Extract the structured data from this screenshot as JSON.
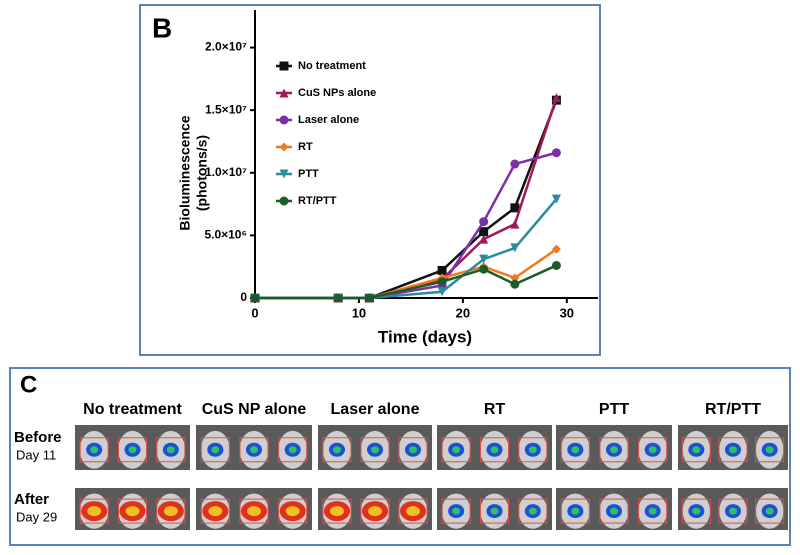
{
  "chart_data": {
    "type": "line",
    "panel_label": "B",
    "xlabel": "Time (days)",
    "ylabel": [
      "Bioluminescence",
      "(photons/s)"
    ],
    "x": [
      0,
      8,
      11,
      18,
      22,
      25,
      29
    ],
    "series": [
      {
        "name": "No treatment",
        "color": "#111111",
        "marker": "square",
        "values": [
          0,
          0,
          0,
          2200000,
          5300000,
          7200000,
          15800000
        ]
      },
      {
        "name": "CuS NPs alone",
        "color": "#a0195a",
        "marker": "triangle",
        "values": [
          0,
          0,
          0,
          1500000,
          4700000,
          5900000,
          16000000
        ]
      },
      {
        "name": "Laser alone",
        "color": "#7b2fa8",
        "marker": "circle",
        "values": [
          0,
          0,
          0,
          1000000,
          6100000,
          10700000,
          11600000
        ]
      },
      {
        "name": "RT",
        "color": "#f07820",
        "marker": "diamond",
        "values": [
          0,
          0,
          0,
          1600000,
          2500000,
          1600000,
          3900000
        ]
      },
      {
        "name": "PTT",
        "color": "#2a8a9e",
        "marker": "triangle-down",
        "values": [
          0,
          0,
          0,
          500000,
          3100000,
          4000000,
          7900000
        ]
      },
      {
        "name": "RT/PTT",
        "color": "#1a5c2a",
        "marker": "circle",
        "values": [
          0,
          0,
          0,
          1300000,
          2300000,
          1100000,
          2600000
        ]
      }
    ],
    "xlim": [
      0,
      33
    ],
    "xticks": [
      0,
      10,
      20,
      30
    ],
    "ylim": [
      0,
      23000000
    ],
    "yticks": [
      0,
      {
        "value": 5000000,
        "label": "5.0×10⁶"
      },
      {
        "value": 10000000,
        "label": "1.0×10⁷"
      },
      {
        "value": 15000000,
        "label": "1.5×10⁷"
      },
      {
        "value": 20000000,
        "label": "2.0×10⁷"
      }
    ],
    "legend": "upper-left"
  },
  "panel_c": {
    "label": "C",
    "columns": [
      "No treatment",
      "CuS NP alone",
      "Laser alone",
      "RT",
      "PTT",
      "RT/PTT"
    ],
    "rows": [
      {
        "name": "Before",
        "day": "Day 11"
      },
      {
        "name": "After",
        "day": "Day 29"
      }
    ]
  }
}
